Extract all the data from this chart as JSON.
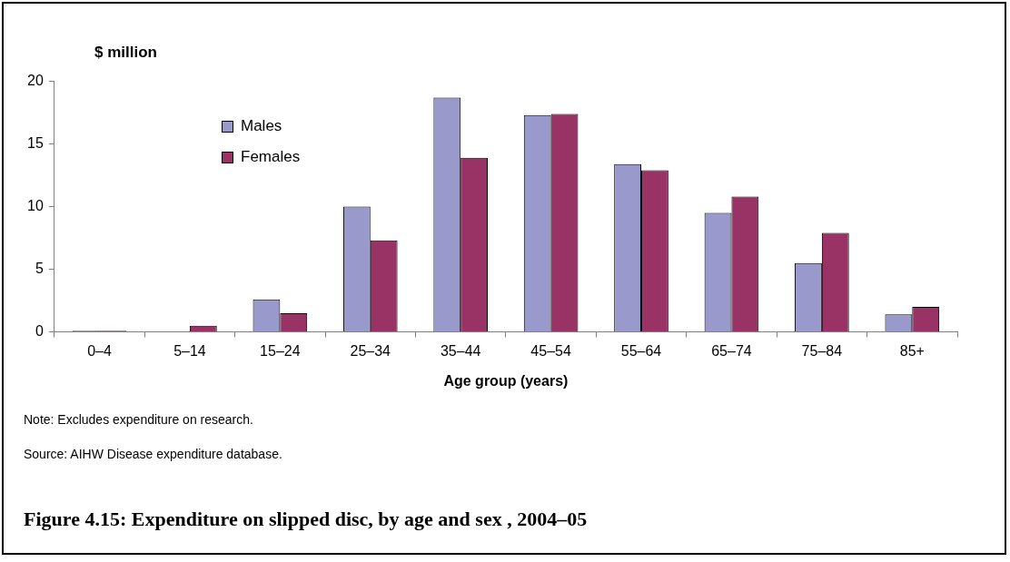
{
  "chart_data": {
    "type": "bar",
    "title": "Figure 4.15: Expenditure on slipped disc, by age and sex , 2004–05",
    "ylabel": "$ million",
    "xlabel": "Age group (years)",
    "categories": [
      "0–4",
      "5–14",
      "15–24",
      "25–34",
      "35–44",
      "45–54",
      "55–64",
      "65–74",
      "75–84",
      "85+"
    ],
    "series": [
      {
        "name": "Males",
        "color": "#9999cc",
        "values": [
          0.1,
          0,
          2.6,
          10.0,
          18.7,
          17.3,
          13.4,
          9.5,
          5.5,
          1.4
        ]
      },
      {
        "name": "Females",
        "color": "#993366",
        "values": [
          0.1,
          0.5,
          1.5,
          7.3,
          13.9,
          17.4,
          12.9,
          10.8,
          7.9,
          2.0
        ]
      }
    ],
    "ylim": [
      0,
      20
    ],
    "yticks": [
      0,
      5,
      10,
      15,
      20
    ],
    "grid": false,
    "legend": "top left",
    "annotations": [
      "Note: Excludes expenditure on research.",
      "Source: AIHW Disease expenditure database."
    ]
  }
}
